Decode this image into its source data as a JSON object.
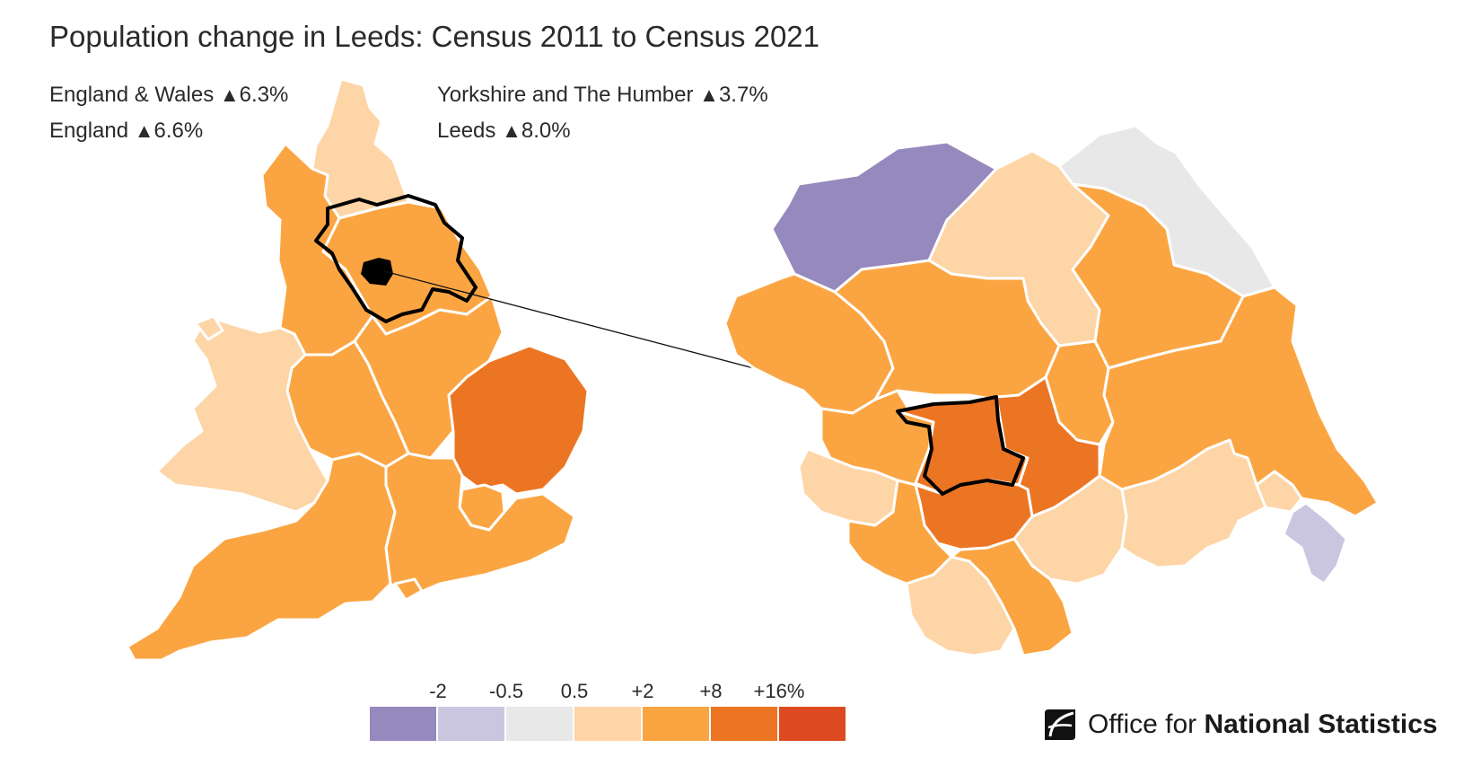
{
  "title": "Population change in Leeds: Census 2011 to Census 2021",
  "stats": {
    "england_wales_label": "England & Wales",
    "england_wales_value": "6.3%",
    "england_label": "England",
    "england_value": "6.6%",
    "yorkshire_label": "Yorkshire and The Humber",
    "yorkshire_value": "3.7%",
    "leeds_label": "Leeds",
    "leeds_value": "8.0%",
    "arrow": "▲"
  },
  "legend": {
    "ticks": [
      "-2",
      "-0.5",
      "0.5",
      "+2",
      "+8",
      "+16%"
    ],
    "colors": [
      "#9589bd",
      "#cbc6e0",
      "#e8e8e8",
      "#fdd5a6",
      "#fba542",
      "#ec7524",
      "#dd4a1f"
    ]
  },
  "colors": {
    "purple_dark": "#9589bd",
    "purple_light": "#cbc6e0",
    "grey": "#e8e8e8",
    "peach": "#fdd5a6",
    "orange": "#fba542",
    "dark_orange": "#ec7524",
    "red": "#dd4a1f"
  },
  "logo": {
    "text_regular": "Office for",
    "text_bold": "National Statistics"
  }
}
